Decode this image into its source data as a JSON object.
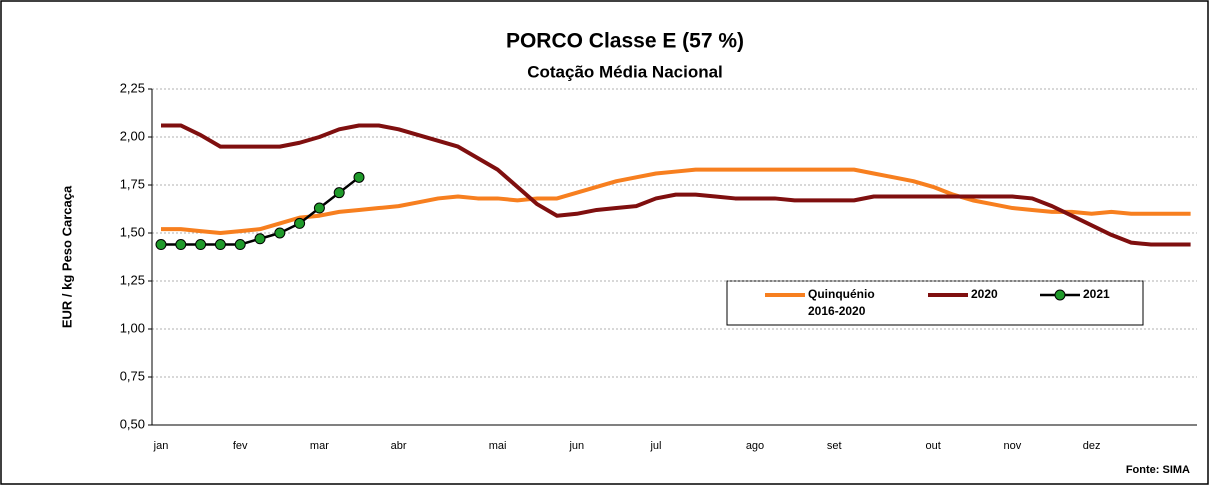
{
  "chart_data": {
    "type": "line",
    "title": "PORCO Classe E (57 %)",
    "subtitle": "Cotação Média Nacional",
    "y_label": "EUR / kg Peso Carcaça",
    "source": "Fonte: SIMA",
    "categories": [
      "jan",
      null,
      null,
      null,
      "fev",
      null,
      null,
      null,
      "mar",
      null,
      null,
      null,
      "abr",
      null,
      null,
      null,
      null,
      "mai",
      null,
      null,
      null,
      "jun",
      null,
      null,
      null,
      "jul",
      null,
      null,
      null,
      null,
      "ago",
      null,
      null,
      null,
      "set",
      null,
      null,
      null,
      null,
      "out",
      null,
      null,
      null,
      "nov",
      null,
      null,
      null,
      "dez",
      null,
      null,
      null,
      null,
      null
    ],
    "ylim": [
      0.5,
      2.25
    ],
    "yticks": [
      {
        "value": 0.5,
        "label": "0,50"
      },
      {
        "value": 0.75,
        "label": "0,75"
      },
      {
        "value": 1,
        "label": "1,00"
      },
      {
        "value": 1.25,
        "label": "1,25"
      },
      {
        "value": 1.5,
        "label": "1,50"
      },
      {
        "value": 1.75,
        "label": "1,75"
      },
      {
        "value": 2,
        "label": "2,00"
      },
      {
        "value": 2.25,
        "label": "2,25"
      }
    ],
    "grid": true,
    "series": [
      {
        "name": "Quinquénio 2016-2020",
        "color": "#f77f1f",
        "values": [
          1.52,
          1.52,
          1.51,
          1.5,
          1.51,
          1.52,
          1.55,
          1.58,
          1.59,
          1.61,
          1.62,
          1.63,
          1.64,
          1.66,
          1.68,
          1.69,
          1.68,
          1.68,
          1.67,
          1.68,
          1.68,
          1.71,
          1.74,
          1.77,
          1.79,
          1.81,
          1.82,
          1.83,
          1.83,
          1.83,
          1.83,
          1.83,
          1.83,
          1.83,
          1.83,
          1.83,
          1.81,
          1.79,
          1.77,
          1.74,
          1.7,
          1.67,
          1.65,
          1.63,
          1.62,
          1.61,
          1.61,
          1.6,
          1.61,
          1.6,
          1.6,
          1.6,
          1.6
        ]
      },
      {
        "name": "2020",
        "color": "#7f0f0f",
        "values": [
          2.06,
          2.06,
          2.01,
          1.95,
          1.95,
          1.95,
          1.95,
          1.97,
          2.0,
          2.04,
          2.06,
          2.06,
          2.04,
          2.01,
          1.98,
          1.95,
          1.89,
          1.83,
          1.74,
          1.65,
          1.59,
          1.6,
          1.62,
          1.63,
          1.64,
          1.68,
          1.7,
          1.7,
          1.69,
          1.68,
          1.68,
          1.68,
          1.67,
          1.67,
          1.67,
          1.67,
          1.69,
          1.69,
          1.69,
          1.69,
          1.69,
          1.69,
          1.69,
          1.69,
          1.68,
          1.64,
          1.59,
          1.54,
          1.49,
          1.45,
          1.44,
          1.44,
          1.44
        ]
      },
      {
        "name": "2021",
        "color": "#000000",
        "marker_color": "#1f9a2a",
        "values": [
          1.44,
          1.44,
          1.44,
          1.44,
          1.44,
          1.47,
          1.5,
          1.55,
          1.63,
          1.71,
          1.79,
          null,
          null,
          null,
          null,
          null,
          null,
          null,
          null,
          null,
          null,
          null,
          null,
          null,
          null,
          null,
          null,
          null,
          null,
          null,
          null,
          null,
          null,
          null,
          null,
          null,
          null,
          null,
          null,
          null,
          null,
          null,
          null,
          null,
          null,
          null,
          null,
          null,
          null,
          null,
          null,
          null,
          null
        ]
      }
    ]
  }
}
